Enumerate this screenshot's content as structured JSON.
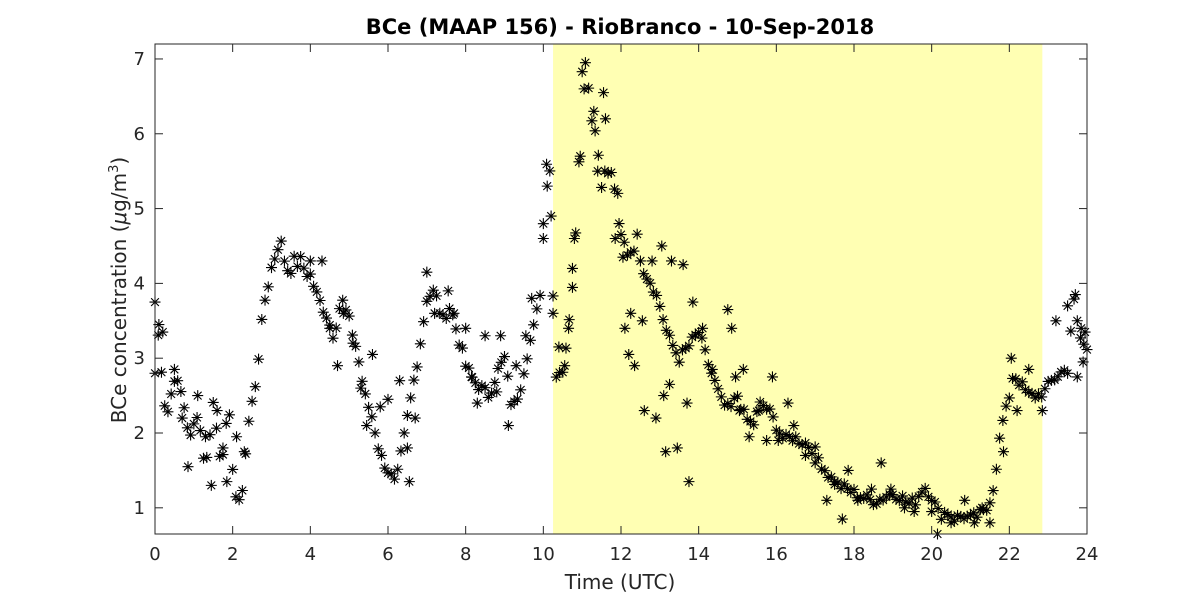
{
  "chart_data": {
    "type": "scatter",
    "title": "BCe (MAAP 156) - RioBranco - 10-Sep-2018",
    "xlabel": "Time (UTC)",
    "ylabel": {
      "prefix": "BCe concentration (",
      "mu": "μ",
      "unit": "g/m",
      "sup": "3",
      "suffix": ")"
    },
    "xlim": [
      0,
      24
    ],
    "ylim": [
      0.65,
      7.2
    ],
    "xticks": [
      "0",
      "2",
      "4",
      "6",
      "8",
      "10",
      "12",
      "14",
      "16",
      "18",
      "20",
      "22",
      "24"
    ],
    "yticks": [
      "1",
      "2",
      "3",
      "4",
      "5",
      "6",
      "7"
    ],
    "marker": "asterisk",
    "marker_color": "#000000",
    "highlight": {
      "x_start": 10.25,
      "x_end": 22.85,
      "color": "#ffffb3"
    },
    "grid": false,
    "anchors": [
      [
        0.0,
        2.8
      ],
      [
        0.1,
        3.4
      ],
      [
        0.2,
        2.6
      ],
      [
        0.3,
        2.2
      ],
      [
        0.5,
        2.75
      ],
      [
        0.7,
        2.5
      ],
      [
        0.9,
        1.9
      ],
      [
        1.1,
        2.3
      ],
      [
        1.3,
        1.5
      ],
      [
        1.5,
        2.4
      ],
      [
        1.7,
        1.6
      ],
      [
        1.9,
        2.3
      ],
      [
        2.05,
        1.2
      ],
      [
        2.2,
        1.0
      ],
      [
        2.4,
        2.1
      ],
      [
        2.6,
        2.7
      ],
      [
        2.8,
        3.7
      ],
      [
        3.0,
        4.2
      ],
      [
        3.2,
        4.6
      ],
      [
        3.4,
        4.2
      ],
      [
        3.7,
        4.3
      ],
      [
        4.0,
        4.1
      ],
      [
        4.2,
        3.8
      ],
      [
        4.4,
        3.6
      ],
      [
        4.6,
        3.3
      ],
      [
        4.8,
        3.8
      ],
      [
        5.0,
        3.5
      ],
      [
        5.2,
        3.1
      ],
      [
        5.4,
        2.5
      ],
      [
        5.6,
        2.2
      ],
      [
        5.8,
        1.7
      ],
      [
        6.0,
        1.5
      ],
      [
        6.2,
        1.3
      ],
      [
        6.4,
        1.9
      ],
      [
        6.6,
        2.5
      ],
      [
        6.8,
        3.1
      ],
      [
        7.0,
        3.8
      ],
      [
        7.2,
        3.9
      ],
      [
        7.4,
        3.5
      ],
      [
        7.6,
        3.7
      ],
      [
        7.8,
        3.3
      ],
      [
        8.0,
        2.9
      ],
      [
        8.2,
        2.7
      ],
      [
        8.4,
        2.6
      ],
      [
        8.6,
        2.5
      ],
      [
        8.8,
        2.8
      ],
      [
        9.0,
        3.0
      ],
      [
        9.2,
        2.3
      ],
      [
        9.4,
        2.6
      ],
      [
        9.6,
        3.1
      ],
      [
        9.8,
        3.5
      ],
      [
        9.95,
        4.0
      ],
      [
        10.05,
        5.6
      ],
      [
        10.15,
        5.9
      ],
      [
        10.3,
        2.8
      ],
      [
        10.5,
        2.85
      ],
      [
        10.7,
        3.6
      ],
      [
        10.85,
        4.9
      ],
      [
        11.0,
        6.8
      ],
      [
        11.1,
        7.1
      ],
      [
        11.2,
        6.4
      ],
      [
        11.35,
        6.0
      ],
      [
        11.5,
        5.4
      ],
      [
        11.7,
        5.5
      ],
      [
        11.9,
        5.2
      ],
      [
        12.0,
        4.6
      ],
      [
        12.2,
        4.4
      ],
      [
        12.4,
        4.6
      ],
      [
        12.6,
        4.2
      ],
      [
        12.8,
        4.0
      ],
      [
        13.0,
        3.7
      ],
      [
        13.2,
        3.3
      ],
      [
        13.5,
        3.0
      ],
      [
        13.8,
        3.2
      ],
      [
        14.0,
        3.35
      ],
      [
        14.2,
        3.0
      ],
      [
        14.4,
        2.7
      ],
      [
        14.6,
        2.4
      ],
      [
        14.8,
        2.3
      ],
      [
        15.0,
        2.5
      ],
      [
        15.2,
        2.2
      ],
      [
        15.4,
        2.1
      ],
      [
        15.6,
        2.4
      ],
      [
        15.8,
        2.3
      ],
      [
        16.0,
        2.1
      ],
      [
        16.2,
        1.9
      ],
      [
        16.4,
        1.95
      ],
      [
        16.6,
        1.9
      ],
      [
        16.8,
        1.85
      ],
      [
        17.0,
        1.75
      ],
      [
        17.2,
        1.55
      ],
      [
        17.4,
        1.4
      ],
      [
        17.6,
        1.3
      ],
      [
        17.8,
        1.25
      ],
      [
        18.0,
        1.2
      ],
      [
        18.2,
        1.15
      ],
      [
        18.4,
        1.1
      ],
      [
        18.6,
        1.1
      ],
      [
        18.8,
        1.15
      ],
      [
        19.0,
        1.2
      ],
      [
        19.2,
        1.15
      ],
      [
        19.4,
        1.05
      ],
      [
        19.6,
        1.1
      ],
      [
        19.8,
        1.3
      ],
      [
        20.0,
        1.15
      ],
      [
        20.2,
        0.9
      ],
      [
        20.4,
        0.95
      ],
      [
        20.6,
        0.85
      ],
      [
        20.8,
        0.9
      ],
      [
        21.0,
        0.85
      ],
      [
        21.2,
        0.9
      ],
      [
        21.4,
        0.95
      ],
      [
        21.6,
        1.3
      ],
      [
        21.8,
        2.1
      ],
      [
        21.95,
        2.35
      ],
      [
        22.1,
        2.8
      ],
      [
        22.3,
        2.65
      ],
      [
        22.5,
        2.5
      ],
      [
        22.7,
        2.5
      ],
      [
        22.9,
        2.55
      ],
      [
        23.1,
        2.7
      ],
      [
        23.3,
        2.8
      ],
      [
        23.5,
        2.85
      ],
      [
        23.65,
        3.8
      ],
      [
        23.8,
        3.3
      ],
      [
        24.0,
        3.1
      ]
    ],
    "scatter_points": [
      [
        0.0,
        3.75
      ],
      [
        0.1,
        3.45
      ],
      [
        0.2,
        3.35
      ],
      [
        0.5,
        2.85
      ],
      [
        0.7,
        2.2
      ],
      [
        0.85,
        1.55
      ],
      [
        1.1,
        2.5
      ],
      [
        1.3,
        1.95
      ],
      [
        1.45,
        1.3
      ],
      [
        1.6,
        2.3
      ],
      [
        1.75,
        1.8
      ],
      [
        1.85,
        1.35
      ],
      [
        2.1,
        1.95
      ],
      [
        2.3,
        1.75
      ],
      [
        4.0,
        4.3
      ],
      [
        4.3,
        4.3
      ],
      [
        4.5,
        3.4
      ],
      [
        4.7,
        2.9
      ],
      [
        4.85,
        3.6
      ],
      [
        5.1,
        3.2
      ],
      [
        5.3,
        2.6
      ],
      [
        5.45,
        2.1
      ],
      [
        5.6,
        3.05
      ],
      [
        5.8,
        2.35
      ],
      [
        6.0,
        2.45
      ],
      [
        6.3,
        2.7
      ],
      [
        6.5,
        1.8
      ],
      [
        6.55,
        1.35
      ],
      [
        6.7,
        2.2
      ],
      [
        7.0,
        4.15
      ],
      [
        7.2,
        3.6
      ],
      [
        7.55,
        3.9
      ],
      [
        7.7,
        3.6
      ],
      [
        8.0,
        3.4
      ],
      [
        8.15,
        2.75
      ],
      [
        8.3,
        2.4
      ],
      [
        8.5,
        3.3
      ],
      [
        8.8,
        2.55
      ],
      [
        8.9,
        3.3
      ],
      [
        9.1,
        2.1
      ],
      [
        9.3,
        2.9
      ],
      [
        9.55,
        3.3
      ],
      [
        9.7,
        3.8
      ],
      [
        10.0,
        4.6
      ],
      [
        10.1,
        5.3
      ],
      [
        10.2,
        4.9
      ],
      [
        10.25,
        3.6
      ],
      [
        10.4,
        3.15
      ],
      [
        10.55,
        2.9
      ],
      [
        10.65,
        3.4
      ],
      [
        10.75,
        4.2
      ],
      [
        10.8,
        4.6
      ],
      [
        10.95,
        5.7
      ],
      [
        11.05,
        6.6
      ],
      [
        11.3,
        6.3
      ],
      [
        11.4,
        5.5
      ],
      [
        11.55,
        6.55
      ],
      [
        11.6,
        6.2
      ],
      [
        11.85,
        4.6
      ],
      [
        11.95,
        4.8
      ],
      [
        12.05,
        4.35
      ],
      [
        12.1,
        3.4
      ],
      [
        12.2,
        3.05
      ],
      [
        12.25,
        3.6
      ],
      [
        12.35,
        2.9
      ],
      [
        12.55,
        3.5
      ],
      [
        12.6,
        2.3
      ],
      [
        12.8,
        4.3
      ],
      [
        12.9,
        2.2
      ],
      [
        13.05,
        4.5
      ],
      [
        13.1,
        2.5
      ],
      [
        13.15,
        1.75
      ],
      [
        13.25,
        2.65
      ],
      [
        13.3,
        4.3
      ],
      [
        13.45,
        1.8
      ],
      [
        13.6,
        4.25
      ],
      [
        13.7,
        2.4
      ],
      [
        13.75,
        1.35
      ],
      [
        13.85,
        3.75
      ],
      [
        14.1,
        3.4
      ],
      [
        14.35,
        2.85
      ],
      [
        14.75,
        3.65
      ],
      [
        14.85,
        3.4
      ],
      [
        14.95,
        2.75
      ],
      [
        15.05,
        2.3
      ],
      [
        15.15,
        2.85
      ],
      [
        15.3,
        1.95
      ],
      [
        15.55,
        2.3
      ],
      [
        15.75,
        1.9
      ],
      [
        15.9,
        2.75
      ],
      [
        16.05,
        1.9
      ],
      [
        16.3,
        2.4
      ],
      [
        16.45,
        2.1
      ],
      [
        16.75,
        1.7
      ],
      [
        17.0,
        1.6
      ],
      [
        17.3,
        1.1
      ],
      [
        17.5,
        1.35
      ],
      [
        17.7,
        0.85
      ],
      [
        17.85,
        1.5
      ],
      [
        18.1,
        1.1
      ],
      [
        18.45,
        1.25
      ],
      [
        18.7,
        1.6
      ],
      [
        18.95,
        1.25
      ],
      [
        19.3,
        1.0
      ],
      [
        19.55,
        0.95
      ],
      [
        20.0,
        0.95
      ],
      [
        20.15,
        0.65
      ],
      [
        20.5,
        0.8
      ],
      [
        20.85,
        1.1
      ],
      [
        21.1,
        0.8
      ],
      [
        21.3,
        1.0
      ],
      [
        21.5,
        0.8
      ],
      [
        21.85,
        1.75
      ],
      [
        22.05,
        3.0
      ],
      [
        22.2,
        2.3
      ],
      [
        22.5,
        2.85
      ],
      [
        22.85,
        2.3
      ],
      [
        23.2,
        3.5
      ],
      [
        23.5,
        3.7
      ],
      [
        23.7,
        3.85
      ],
      [
        23.75,
        2.75
      ],
      [
        23.85,
        3.4
      ],
      [
        23.95,
        3.35
      ],
      [
        23.9,
        2.95
      ]
    ]
  }
}
